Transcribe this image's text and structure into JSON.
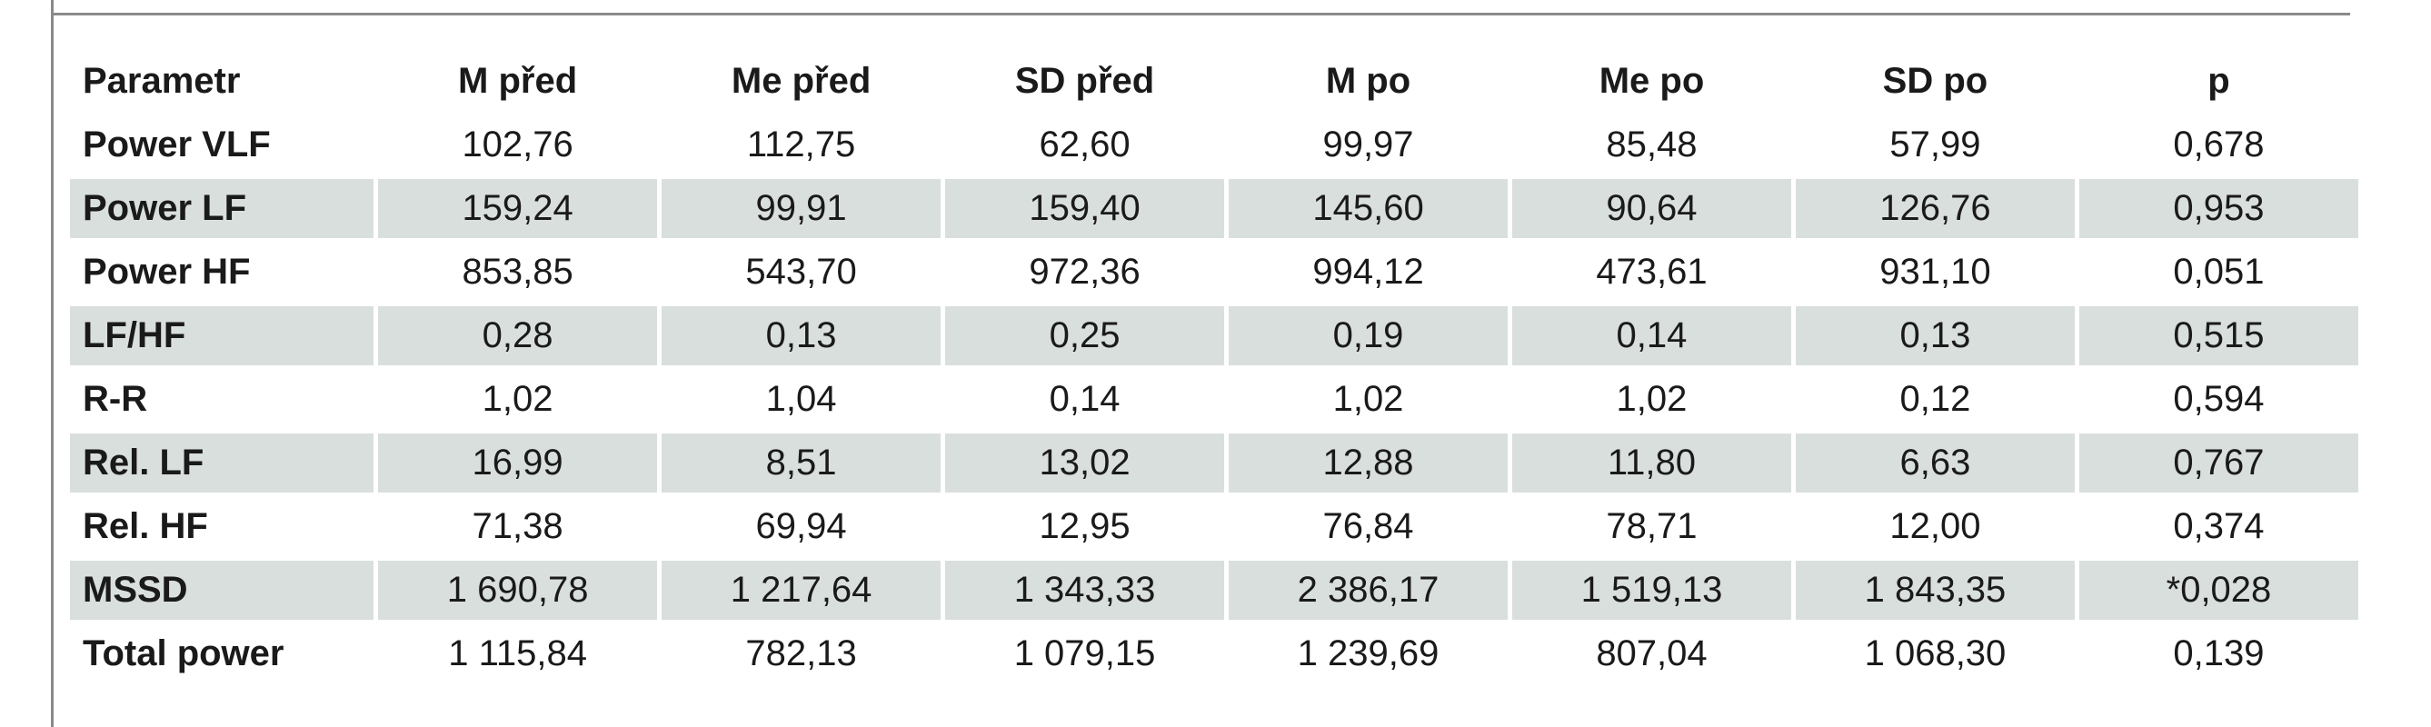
{
  "table": {
    "headers": [
      "Parametr",
      "M před",
      "Me před",
      "SD před",
      "M po",
      "Me po",
      "SD po",
      "p"
    ],
    "rows": [
      {
        "label": "Power VLF",
        "values": [
          "102,76",
          "112,75",
          "62,60",
          "99,97",
          "85,48",
          "57,99",
          "0,678"
        ],
        "shaded": false
      },
      {
        "label": "Power LF",
        "values": [
          "159,24",
          "99,91",
          "159,40",
          "145,60",
          "90,64",
          "126,76",
          "0,953"
        ],
        "shaded": true
      },
      {
        "label": "Power HF",
        "values": [
          "853,85",
          "543,70",
          "972,36",
          "994,12",
          "473,61",
          "931,10",
          "0,051"
        ],
        "shaded": false
      },
      {
        "label": "LF/HF",
        "values": [
          "0,28",
          "0,13",
          "0,25",
          "0,19",
          "0,14",
          "0,13",
          "0,515"
        ],
        "shaded": true
      },
      {
        "label": "R-R",
        "values": [
          "1,02",
          "1,04",
          "0,14",
          "1,02",
          "1,02",
          "0,12",
          "0,594"
        ],
        "shaded": false
      },
      {
        "label": "Rel. LF",
        "values": [
          "16,99",
          "8,51",
          "13,02",
          "12,88",
          "11,80",
          "6,63",
          "0,767"
        ],
        "shaded": true
      },
      {
        "label": "Rel. HF",
        "values": [
          "71,38",
          "69,94",
          "12,95",
          "76,84",
          "78,71",
          "12,00",
          "0,374"
        ],
        "shaded": false
      },
      {
        "label": "MSSD",
        "values": [
          "1 690,78",
          "1 217,64",
          "1 343,33",
          "2 386,17",
          "1 519,13",
          "1 843,35",
          "*0,028"
        ],
        "shaded": true,
        "p_significant": true
      },
      {
        "label": "Total power",
        "values": [
          "1 115,84",
          "782,13",
          "1 079,15",
          "1 239,69",
          "807,04",
          "1 068,30",
          "0,139"
        ],
        "shaded": false
      }
    ]
  },
  "colors": {
    "row_shade": "#d9dfdd",
    "rule": "#8a8a8a",
    "text": "#1a1a1a"
  }
}
